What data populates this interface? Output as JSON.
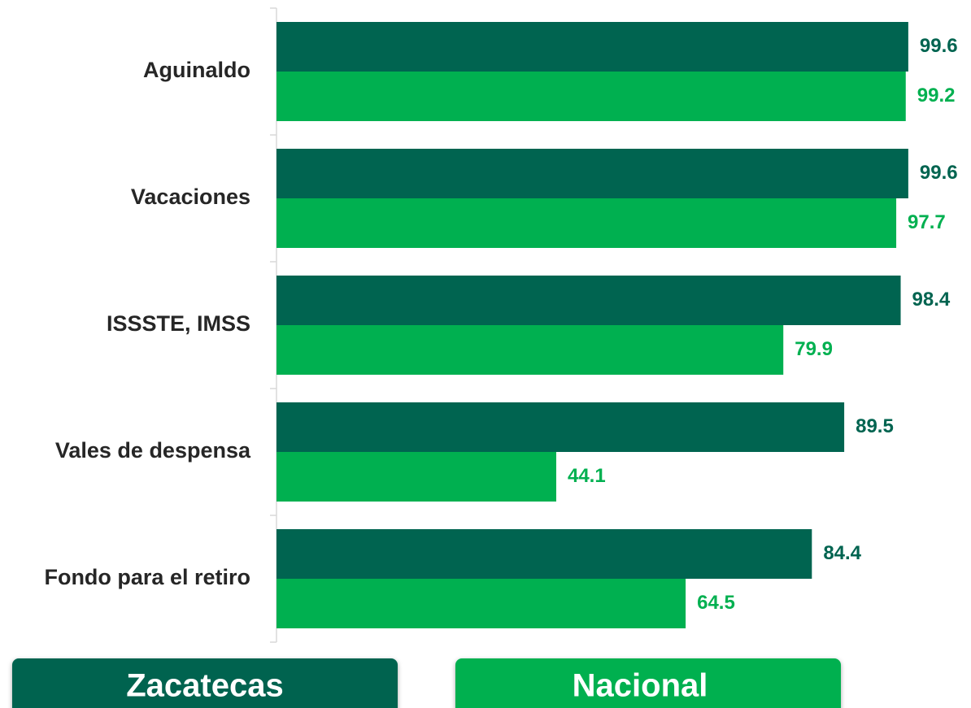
{
  "chart_data": {
    "type": "bar",
    "orientation": "horizontal",
    "categories": [
      "Aguinaldo",
      "Vacaciones",
      "ISSSTE, IMSS",
      "Vales de despensa",
      "Fondo para el retiro"
    ],
    "series": [
      {
        "name": "Zacatecas",
        "color": "#006450",
        "values": [
          99.6,
          99.6,
          98.4,
          89.5,
          84.4
        ]
      },
      {
        "name": "Nacional",
        "color": "#00b050",
        "values": [
          99.2,
          97.7,
          79.9,
          44.1,
          64.5
        ]
      }
    ],
    "xlim": [
      0,
      100
    ],
    "legend": "bottom"
  }
}
